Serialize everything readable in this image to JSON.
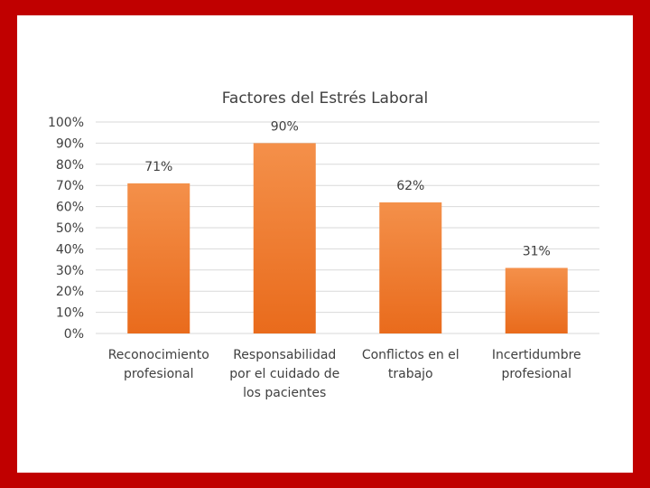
{
  "chart_data": {
    "type": "bar",
    "title": "Factores del Estrés Laboral",
    "categories": [
      [
        "Reconocimiento",
        "profesional"
      ],
      [
        "Responsabilidad",
        "por el cuidado de",
        "los pacientes"
      ],
      [
        "Conflictos en el",
        "trabajo"
      ],
      [
        "Incertidumbre",
        "profesional"
      ]
    ],
    "values": [
      71,
      90,
      62,
      31
    ],
    "value_labels": [
      "71%",
      "90%",
      "62%",
      "31%"
    ],
    "ylim": [
      0,
      100
    ],
    "yticks": [
      "0%",
      "10%",
      "20%",
      "30%",
      "40%",
      "50%",
      "60%",
      "70%",
      "80%",
      "90%",
      "100%"
    ],
    "grid": true,
    "legend": "none",
    "colors": {
      "bar_top": "#f4904a",
      "bar_bottom": "#e96b1c",
      "border": "#c00000"
    }
  }
}
